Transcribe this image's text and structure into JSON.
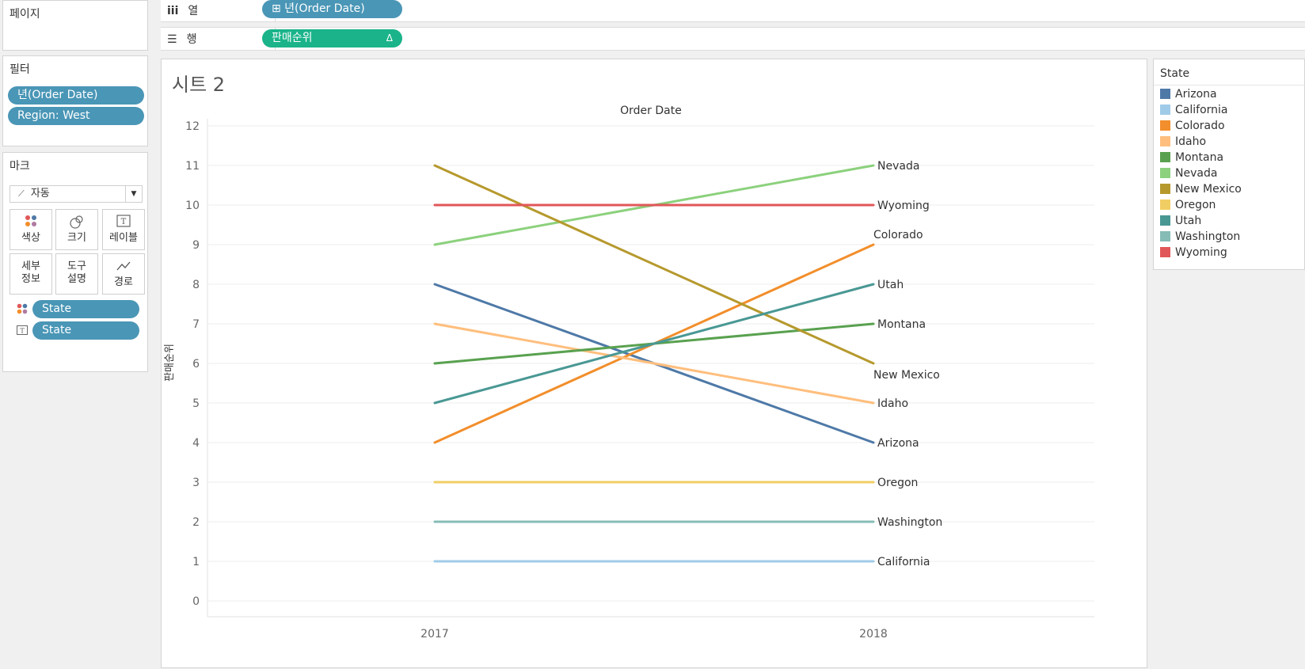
{
  "pages": {
    "title": "페이지"
  },
  "shelves": {
    "columns": {
      "label": "열",
      "pill": "⊞ 년(Order Date)"
    },
    "rows": {
      "label": "행",
      "pill": "판매순위",
      "delta": "Δ"
    }
  },
  "filters": {
    "title": "필터",
    "items": [
      "년(Order Date)",
      "Region: West"
    ]
  },
  "marks": {
    "title": "마크",
    "type": "자동",
    "buttons": [
      {
        "label": "색상",
        "icon": "color-dots-icon"
      },
      {
        "label": "크기",
        "icon": "size-circles-icon"
      },
      {
        "label": "레이블",
        "icon": "label-t-icon"
      },
      {
        "label": "세부\n정보",
        "icon": ""
      },
      {
        "label": "도구\n설명",
        "icon": ""
      },
      {
        "label": "경로",
        "icon": "path-line-icon"
      }
    ],
    "fields": [
      {
        "icon": "color-dots-icon",
        "label": "State"
      },
      {
        "icon": "label-t-icon",
        "label": "State"
      }
    ]
  },
  "sheet": {
    "title": "시트 2"
  },
  "legend": {
    "title": "State"
  },
  "chart_data": {
    "type": "line",
    "title": "Order Date",
    "ylabel": "판매순위",
    "x": [
      "2017",
      "2018"
    ],
    "yticks": [
      0,
      1,
      2,
      3,
      4,
      5,
      6,
      7,
      8,
      9,
      10,
      11,
      12
    ],
    "ylim": [
      0,
      12
    ],
    "grid": true,
    "legend": "right",
    "series": [
      {
        "name": "Arizona",
        "color": "#4e79a7",
        "values": [
          8,
          4
        ]
      },
      {
        "name": "California",
        "color": "#a0cbe8",
        "values": [
          1,
          1
        ]
      },
      {
        "name": "Colorado",
        "color": "#f28e2b",
        "values": [
          4,
          9
        ]
      },
      {
        "name": "Idaho",
        "color": "#ffbe7d",
        "values": [
          7,
          5
        ]
      },
      {
        "name": "Montana",
        "color": "#59a14f",
        "values": [
          6,
          7
        ]
      },
      {
        "name": "Nevada",
        "color": "#8cd17d",
        "values": [
          9,
          11
        ]
      },
      {
        "name": "New Mexico",
        "color": "#b6992d",
        "values": [
          11,
          6
        ]
      },
      {
        "name": "Oregon",
        "color": "#f1ce63",
        "values": [
          3,
          3
        ]
      },
      {
        "name": "Utah",
        "color": "#499894",
        "values": [
          5,
          8
        ]
      },
      {
        "name": "Washington",
        "color": "#86bcb6",
        "values": [
          2,
          2
        ]
      },
      {
        "name": "Wyoming",
        "color": "#e15759",
        "values": [
          10,
          10
        ]
      }
    ]
  }
}
